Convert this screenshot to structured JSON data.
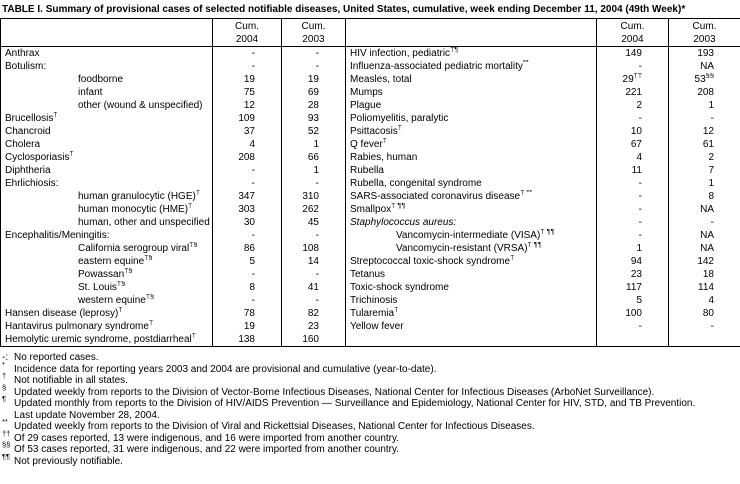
{
  "title": "TABLE I. Summary of provisional cases of selected notifiable diseases, United States, cumulative, week ending December 11, 2004 (49th Week)*",
  "columns": {
    "cum": "Cum.",
    "y2004": "2004",
    "y2003": "2003"
  },
  "colors": {
    "text": "#000000",
    "background": "#ffffff",
    "border": "#000000"
  },
  "left_rows": [
    {
      "name": "Anthrax",
      "c2004": "-",
      "c2003": "-"
    },
    {
      "name": "Botulism:",
      "c2004": "-",
      "c2003": "-"
    },
    {
      "name": "foodborne",
      "indent": 1,
      "c2004": "19",
      "c2003": "19"
    },
    {
      "name": "infant",
      "indent": 1,
      "c2004": "75",
      "c2003": "69"
    },
    {
      "name": "other (wound & unspecified)",
      "indent": 1,
      "c2004": "12",
      "c2003": "28"
    },
    {
      "name": "Brucellosis",
      "sup": "†",
      "c2004": "109",
      "c2003": "93"
    },
    {
      "name": "Chancroid",
      "c2004": "37",
      "c2003": "52"
    },
    {
      "name": "Cholera",
      "c2004": "4",
      "c2003": "1"
    },
    {
      "name": "Cyclosporiasis",
      "sup": "†",
      "c2004": "208",
      "c2003": "66"
    },
    {
      "name": "Diphtheria",
      "c2004": "-",
      "c2003": "1"
    },
    {
      "name": "Ehrlichiosis:",
      "c2004": "-",
      "c2003": "-"
    },
    {
      "name": "human granulocytic (HGE)",
      "sup": "†",
      "indent": 1,
      "c2004": "347",
      "c2003": "310"
    },
    {
      "name": "human monocytic (HME)",
      "sup": "†",
      "indent": 1,
      "c2004": "303",
      "c2003": "262"
    },
    {
      "name": "human, other and unspecified",
      "indent": 1,
      "c2004": "30",
      "c2003": "45"
    },
    {
      "name": "Encephalitis/Meningitis:",
      "c2004": "-",
      "c2003": "-"
    },
    {
      "name": "California serogroup viral",
      "sup": "†§",
      "indent": 1,
      "c2004": "86",
      "c2003": "108"
    },
    {
      "name": "eastern equine",
      "sup": "†§",
      "indent": 1,
      "c2004": "5",
      "c2003": "14"
    },
    {
      "name": "Powassan",
      "sup": "†§",
      "indent": 1,
      "c2004": "-",
      "c2003": "-"
    },
    {
      "name": "St. Louis",
      "sup": "†§",
      "indent": 1,
      "c2004": "8",
      "c2003": "41"
    },
    {
      "name": "western equine",
      "sup": "†§",
      "indent": 1,
      "c2004": "-",
      "c2003": "-"
    },
    {
      "name": "Hansen disease (leprosy)",
      "sup": "†",
      "c2004": "78",
      "c2003": "82"
    },
    {
      "name": "Hantavirus pulmonary syndrome",
      "sup": "†",
      "c2004": "19",
      "c2003": "23"
    },
    {
      "name": "Hemolytic uremic syndrome, postdiarrheal",
      "sup": "†",
      "c2004": "138",
      "c2003": "160"
    }
  ],
  "right_rows": [
    {
      "name": "HIV infection, pediatric",
      "sup": "†¶",
      "c2004": "149",
      "c2003": "193"
    },
    {
      "name": "Influenza-associated pediatric mortality",
      "sup": "**",
      "c2004": "-",
      "c2003": "NA"
    },
    {
      "name": "Measles, total",
      "c2004": "29",
      "c2004_sup": "††",
      "c2003": "53",
      "c2003_sup": "§§"
    },
    {
      "name": "Mumps",
      "c2004": "221",
      "c2003": "208"
    },
    {
      "name": "Plague",
      "c2004": "2",
      "c2003": "1"
    },
    {
      "name": "Poliomyelitis, paralytic",
      "c2004": "-",
      "c2003": "-"
    },
    {
      "name": "Psittacosis",
      "sup": "†",
      "c2004": "10",
      "c2003": "12"
    },
    {
      "name": "Q fever",
      "sup": "†",
      "c2004": "67",
      "c2003": "61"
    },
    {
      "name": "Rabies, human",
      "c2004": "4",
      "c2003": "2"
    },
    {
      "name": "Rubella",
      "c2004": "11",
      "c2003": "7"
    },
    {
      "name": "Rubella, congenital syndrome",
      "c2004": "-",
      "c2003": "1"
    },
    {
      "name": "SARS-associated coronavirus disease",
      "sup": "† **",
      "c2004": "-",
      "c2003": "8"
    },
    {
      "name": "Smallpox",
      "sup": "† ¶¶",
      "c2004": "-",
      "c2003": "NA"
    },
    {
      "name": "Staphylococcus aureus:",
      "italic": true,
      "c2004": "-",
      "c2003": "-"
    },
    {
      "name": "Vancomycin-intermediate (VISA)",
      "sup": "† ¶¶",
      "indent": 1,
      "c2004": "-",
      "c2003": "NA"
    },
    {
      "name": "Vancomycin-resistant (VRSA)",
      "sup": "† ¶¶",
      "indent": 1,
      "c2004": "1",
      "c2003": "NA"
    },
    {
      "name": "Streptococcal toxic-shock syndrome",
      "sup": "†",
      "c2004": "94",
      "c2003": "142"
    },
    {
      "name": "Tetanus",
      "c2004": "23",
      "c2003": "18"
    },
    {
      "name": "Toxic-shock syndrome",
      "c2004": "117",
      "c2003": "114"
    },
    {
      "name": "Trichinosis",
      "c2004": "5",
      "c2003": "4"
    },
    {
      "name": "Tularemia",
      "sup": "†",
      "c2004": "100",
      "c2003": "80"
    },
    {
      "name": "Yellow fever",
      "c2004": "-",
      "c2003": "-"
    }
  ],
  "footnotes": [
    {
      "marker": "-:",
      "sup": false,
      "lines": [
        "No reported cases."
      ]
    },
    {
      "marker": "*",
      "sup": true,
      "lines": [
        "Incidence data for reporting years 2003 and 2004 are provisional and cumulative (year-to-date)."
      ]
    },
    {
      "marker": "†",
      "sup": true,
      "lines": [
        "Not notifiable in all states."
      ]
    },
    {
      "marker": "§",
      "sup": true,
      "lines": [
        "Updated weekly from reports to the Division of Vector-Borne Infectious Diseases, National Center for Infectious Diseases (ArboNet Surveillance)."
      ]
    },
    {
      "marker": "¶",
      "sup": true,
      "lines": [
        "Updated monthly from reports to the Division of HIV/AIDS Prevention — Surveillance and Epidemiology, National Center for HIV, STD, and TB Prevention.",
        "Last update November 28, 2004."
      ]
    },
    {
      "marker": "**",
      "sup": true,
      "lines": [
        "Updated weekly from reports to the Division of Viral and Rickettsial Diseases, National Center for Infectious Diseases."
      ]
    },
    {
      "marker": "††",
      "sup": true,
      "lines": [
        "Of 29 cases reported, 13 were indigenous, and 16 were imported from another country."
      ]
    },
    {
      "marker": "§§",
      "sup": true,
      "lines": [
        "Of 53 cases reported, 31 were indigenous, and 22 were imported from another country."
      ]
    },
    {
      "marker": "¶¶",
      "sup": true,
      "lines": [
        "Not previously notifiable."
      ]
    }
  ]
}
